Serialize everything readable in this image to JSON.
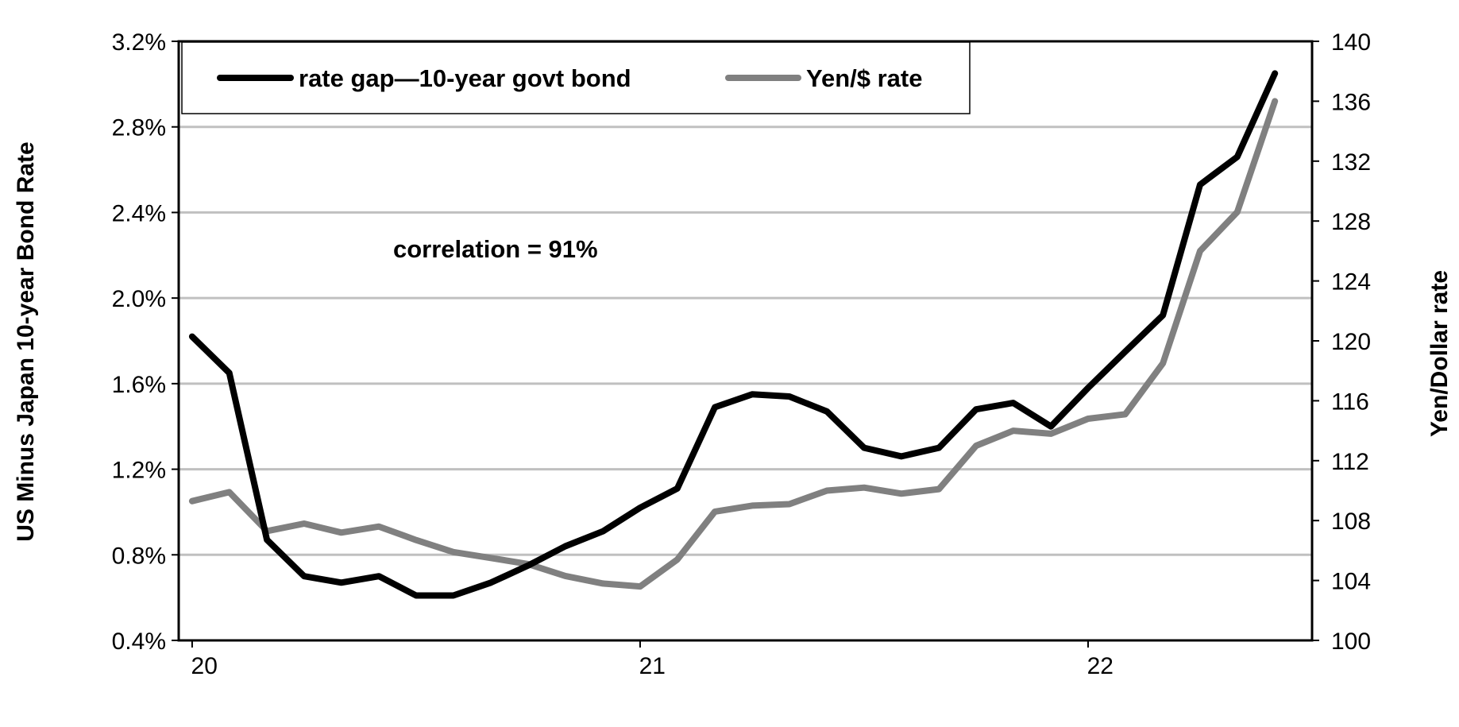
{
  "chart_data": {
    "type": "line",
    "x": [
      20.0,
      20.083,
      20.167,
      20.25,
      20.333,
      20.417,
      20.5,
      20.583,
      20.667,
      20.75,
      20.833,
      20.917,
      21.0,
      21.083,
      21.167,
      21.25,
      21.333,
      21.417,
      21.5,
      21.583,
      21.667,
      21.75,
      21.833,
      21.917,
      22.0,
      22.083,
      22.167,
      22.25,
      22.333,
      22.417
    ],
    "xlim": [
      19.97,
      22.5
    ],
    "x_ticks": [
      20,
      21,
      22
    ],
    "x_tick_labels": [
      "20",
      "21",
      "22"
    ],
    "series": [
      {
        "name": "rate gap—10-year govt bond",
        "axis": "left",
        "color": "#000000",
        "values": [
          1.82,
          1.65,
          0.87,
          0.7,
          0.67,
          0.7,
          0.61,
          0.61,
          0.67,
          0.75,
          0.84,
          0.91,
          1.02,
          1.11,
          1.49,
          1.55,
          1.54,
          1.47,
          1.3,
          1.26,
          1.3,
          1.48,
          1.51,
          1.4,
          1.58,
          1.75,
          1.92,
          2.53,
          2.66,
          3.05
        ]
      },
      {
        "name": "Yen/$ rate",
        "axis": "right",
        "color": "#808080",
        "values": [
          109.3,
          109.9,
          107.3,
          107.8,
          107.2,
          107.6,
          106.7,
          105.9,
          105.5,
          105.1,
          104.3,
          103.8,
          103.6,
          105.4,
          108.6,
          109.0,
          109.1,
          110.0,
          110.2,
          109.8,
          110.1,
          113.0,
          114.0,
          113.8,
          114.8,
          115.1,
          118.5,
          126.0,
          128.6,
          136.0
        ]
      }
    ],
    "y_left": {
      "label": "US Minus Japan 10-year Bond Rate",
      "lim": [
        0.4,
        3.2
      ],
      "ticks": [
        0.4,
        0.8,
        1.2,
        1.6,
        2.0,
        2.4,
        2.8,
        3.2
      ],
      "tick_labels": [
        "0.4%",
        "0.8%",
        "1.2%",
        "1.6%",
        "2.0%",
        "2.4%",
        "2.8%",
        "3.2%"
      ]
    },
    "y_right": {
      "label": "Yen/Dollar rate",
      "lim": [
        100,
        140
      ],
      "ticks": [
        100,
        104,
        108,
        112,
        116,
        120,
        124,
        128,
        132,
        136,
        140
      ],
      "tick_labels": [
        "100",
        "104",
        "108",
        "112",
        "116",
        "120",
        "124",
        "128",
        "132",
        "136",
        "140"
      ]
    },
    "annotation": "correlation = 91%",
    "legend_position": "top-left",
    "grid": "horizontal",
    "grid_color": "#c0c0c0"
  }
}
